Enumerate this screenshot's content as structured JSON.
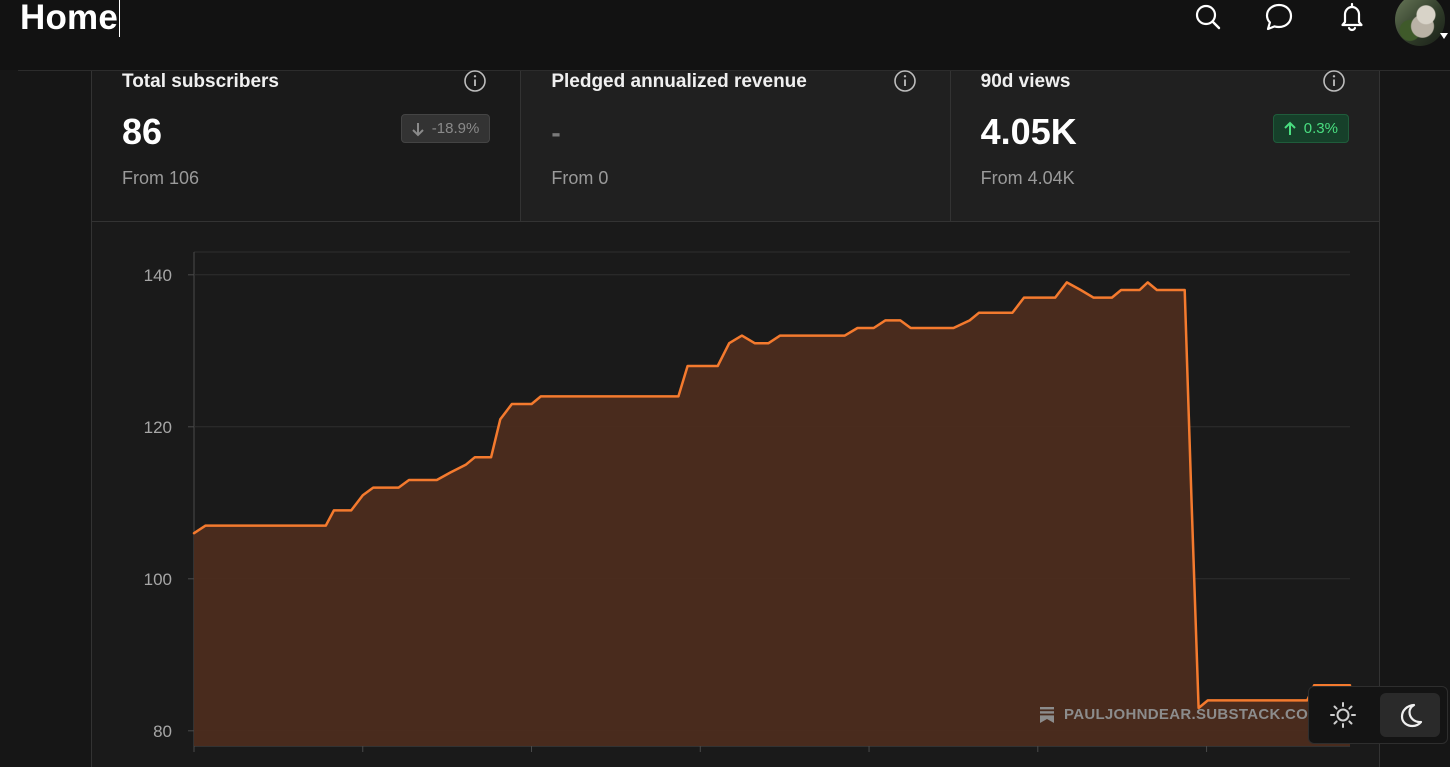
{
  "header": {
    "title": "Home",
    "icons": [
      "search-icon",
      "chat-icon",
      "bell-icon"
    ]
  },
  "stats": [
    {
      "label": "Total subscribers",
      "value": "86",
      "from": "From 106",
      "change": "-18.9%",
      "trend": "down"
    },
    {
      "label": "Pledged annualized revenue",
      "value": "-",
      "from": "From 0"
    },
    {
      "label": "90d views",
      "value": "4.05K",
      "from": "From 4.04K",
      "change": "0.3%",
      "trend": "up"
    }
  ],
  "watermark": {
    "text": "PAULJOHNDEAR.SUBSTACK.CO"
  },
  "theme": {
    "active": "dark"
  },
  "colors": {
    "line": "#f47a2e",
    "fill": "#4c2c1e",
    "badge_up": "#4ade80"
  },
  "chart_data": {
    "type": "area",
    "yticks": [
      80,
      100,
      120,
      140
    ],
    "ylim": [
      78,
      143
    ],
    "xlim": [
      0,
      100
    ],
    "grid": true,
    "points": [
      [
        0,
        106
      ],
      [
        1,
        107
      ],
      [
        11.4,
        107
      ],
      [
        12.1,
        109
      ],
      [
        13.6,
        109
      ],
      [
        14.6,
        111
      ],
      [
        15.5,
        112
      ],
      [
        17.7,
        112
      ],
      [
        18.6,
        113
      ],
      [
        21,
        113
      ],
      [
        22.2,
        114
      ],
      [
        23.5,
        115
      ],
      [
        24.3,
        116
      ],
      [
        25.7,
        116
      ],
      [
        26.5,
        121
      ],
      [
        27.5,
        123
      ],
      [
        29.2,
        123
      ],
      [
        30,
        124
      ],
      [
        41.9,
        124
      ],
      [
        42.7,
        128
      ],
      [
        45.3,
        128
      ],
      [
        46.3,
        131
      ],
      [
        47.4,
        132
      ],
      [
        48.5,
        131
      ],
      [
        49.7,
        131
      ],
      [
        50.7,
        132
      ],
      [
        56.3,
        132
      ],
      [
        57.4,
        133
      ],
      [
        58.8,
        133
      ],
      [
        59.8,
        134
      ],
      [
        61.1,
        134
      ],
      [
        62,
        133
      ],
      [
        65.7,
        133
      ],
      [
        67.1,
        134
      ],
      [
        67.9,
        135
      ],
      [
        70.8,
        135
      ],
      [
        71.8,
        137
      ],
      [
        74.5,
        137
      ],
      [
        75.5,
        139
      ],
      [
        76.7,
        138
      ],
      [
        77.8,
        137
      ],
      [
        79.4,
        137
      ],
      [
        80.2,
        138
      ],
      [
        81.8,
        138
      ],
      [
        82.5,
        139
      ],
      [
        83.3,
        138
      ],
      [
        85.7,
        138
      ],
      [
        86.3,
        110
      ],
      [
        86.9,
        83
      ],
      [
        87.7,
        84
      ],
      [
        96.3,
        84
      ],
      [
        96.9,
        86
      ],
      [
        100,
        86
      ]
    ]
  }
}
